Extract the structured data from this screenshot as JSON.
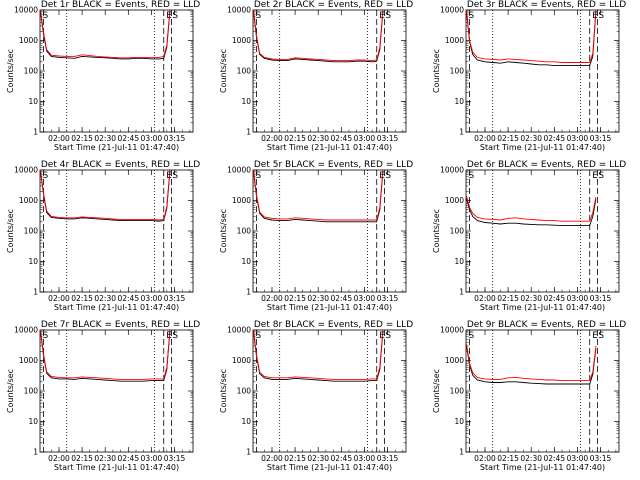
{
  "figure": {
    "ylabel": "Counts/sec",
    "xlabel": "Start Time (21-Jul-11 01:47:40)",
    "x_ticks": [
      "02:00",
      "02:15",
      "02:30",
      "02:45",
      "03:00",
      "03:15"
    ],
    "y_ticks": [
      "1",
      "10",
      "100",
      "1000",
      "10000"
    ],
    "colors": {
      "events": "#000000",
      "lld": "#ff0000"
    }
  },
  "chart_data": [
    {
      "type": "line",
      "title": "Det 1r BLACK = Events, RED = LLD",
      "xlabel": "Start Time (21-Jul-11 01:47:40)",
      "ylabel": "Counts/sec",
      "yscale": "log",
      "ylim": [
        1,
        10000
      ],
      "xlim": [
        "01:47:40",
        "03:27"
      ],
      "x_ticks": [
        "02:00",
        "02:15",
        "02:30",
        "02:45",
        "03:00",
        "03:15"
      ],
      "y_ticks": [
        "1",
        "10",
        "100",
        "1000",
        "10000"
      ],
      "markers": [
        "S",
        "E",
        "S"
      ],
      "x": [
        "01:48",
        "01:50",
        "01:52",
        "01:55",
        "02:00",
        "02:05",
        "02:10",
        "02:15",
        "02:20",
        "02:25",
        "02:30",
        "02:35",
        "02:40",
        "02:45",
        "02:50",
        "02:55",
        "03:00",
        "03:05",
        "03:08",
        "03:10",
        "03:12"
      ],
      "series": [
        {
          "name": "Events",
          "color": "#000000",
          "values": [
            9000,
            1500,
            450,
            300,
            280,
            270,
            260,
            300,
            290,
            280,
            270,
            260,
            250,
            250,
            260,
            260,
            250,
            250,
            260,
            600,
            9000
          ]
        },
        {
          "name": "LLD",
          "color": "#ff0000",
          "values": [
            10000,
            1800,
            500,
            330,
            310,
            300,
            300,
            340,
            320,
            300,
            290,
            280,
            270,
            270,
            280,
            280,
            280,
            280,
            300,
            700,
            10000
          ]
        }
      ]
    },
    {
      "type": "line",
      "title": "Det 2r BLACK = Events, RED = LLD",
      "xlabel": "Start Time (21-Jul-11 01:47:40)",
      "ylabel": "Counts/sec",
      "yscale": "log",
      "ylim": [
        1,
        10000
      ],
      "xlim": [
        "01:47:40",
        "03:27"
      ],
      "x_ticks": [
        "02:00",
        "02:15",
        "02:30",
        "02:45",
        "03:00",
        "03:15"
      ],
      "y_ticks": [
        "1",
        "10",
        "100",
        "1000",
        "10000"
      ],
      "markers": [
        "S",
        "E",
        "S"
      ],
      "x": [
        "01:48",
        "01:50",
        "01:52",
        "01:55",
        "02:00",
        "02:05",
        "02:10",
        "02:15",
        "02:20",
        "02:25",
        "02:30",
        "02:35",
        "02:40",
        "02:45",
        "02:50",
        "02:55",
        "03:00",
        "03:05",
        "03:08",
        "03:10",
        "03:12"
      ],
      "series": [
        {
          "name": "Events",
          "color": "#000000",
          "values": [
            9000,
            1200,
            350,
            260,
            230,
            220,
            220,
            250,
            240,
            230,
            220,
            210,
            200,
            200,
            200,
            210,
            210,
            200,
            210,
            500,
            9000
          ]
        },
        {
          "name": "LLD",
          "color": "#ff0000",
          "values": [
            10000,
            1400,
            380,
            280,
            250,
            240,
            240,
            270,
            260,
            250,
            240,
            230,
            220,
            220,
            220,
            230,
            230,
            220,
            230,
            600,
            10000
          ]
        }
      ]
    },
    {
      "type": "line",
      "title": "Det 3r BLACK = Events, RED = LLD",
      "xlabel": "Start Time (21-Jul-11 01:47:40)",
      "ylabel": "Counts/sec",
      "yscale": "log",
      "ylim": [
        1,
        10000
      ],
      "xlim": [
        "01:47:40",
        "03:27"
      ],
      "x_ticks": [
        "02:00",
        "02:15",
        "02:30",
        "02:45",
        "03:00",
        "03:15"
      ],
      "y_ticks": [
        "1",
        "10",
        "100",
        "1000",
        "10000"
      ],
      "markers": [
        "S",
        "E",
        "S"
      ],
      "x": [
        "01:48",
        "01:50",
        "01:52",
        "01:55",
        "02:00",
        "02:05",
        "02:10",
        "02:15",
        "02:20",
        "02:25",
        "02:30",
        "02:35",
        "02:40",
        "02:45",
        "02:50",
        "02:55",
        "03:00",
        "03:05",
        "03:08",
        "03:10",
        "03:12"
      ],
      "series": [
        {
          "name": "Events",
          "color": "#000000",
          "values": [
            9000,
            900,
            350,
            230,
            200,
            190,
            180,
            200,
            190,
            180,
            170,
            160,
            160,
            150,
            150,
            150,
            150,
            150,
            150,
            300,
            9000
          ]
        },
        {
          "name": "LLD",
          "color": "#ff0000",
          "values": [
            10000,
            1000,
            420,
            280,
            250,
            240,
            230,
            250,
            240,
            230,
            220,
            210,
            200,
            200,
            190,
            190,
            190,
            190,
            190,
            380,
            10000
          ]
        }
      ]
    },
    {
      "type": "line",
      "title": "Det 4r BLACK = Events, RED = LLD",
      "xlabel": "Start Time (21-Jul-11 01:47:40)",
      "ylabel": "Counts/sec",
      "yscale": "log",
      "ylim": [
        1,
        10000
      ],
      "xlim": [
        "01:47:40",
        "03:27"
      ],
      "x_ticks": [
        "02:00",
        "02:15",
        "02:30",
        "02:45",
        "03:00",
        "03:15"
      ],
      "y_ticks": [
        "1",
        "10",
        "100",
        "1000",
        "10000"
      ],
      "markers": [
        "S",
        "E",
        "S"
      ],
      "x": [
        "01:48",
        "01:50",
        "01:52",
        "01:55",
        "02:00",
        "02:05",
        "02:10",
        "02:15",
        "02:20",
        "02:25",
        "02:30",
        "02:35",
        "02:40",
        "02:45",
        "02:50",
        "02:55",
        "03:00",
        "03:05",
        "03:08",
        "03:10",
        "03:12"
      ],
      "series": [
        {
          "name": "Events",
          "color": "#000000",
          "values": [
            9000,
            1500,
            400,
            280,
            260,
            250,
            250,
            270,
            260,
            250,
            240,
            230,
            220,
            220,
            220,
            220,
            220,
            210,
            220,
            550,
            9000
          ]
        },
        {
          "name": "LLD",
          "color": "#ff0000",
          "values": [
            10000,
            1700,
            450,
            300,
            280,
            270,
            270,
            290,
            280,
            270,
            260,
            250,
            240,
            240,
            240,
            240,
            240,
            230,
            240,
            650,
            10000
          ]
        }
      ]
    },
    {
      "type": "line",
      "title": "Det 5r BLACK = Events, RED = LLD",
      "xlabel": "Start Time (21-Jul-11 01:47:40)",
      "ylabel": "Counts/sec",
      "yscale": "log",
      "ylim": [
        1,
        10000
      ],
      "xlim": [
        "01:47:40",
        "03:27"
      ],
      "x_ticks": [
        "02:00",
        "02:15",
        "02:30",
        "02:45",
        "03:00",
        "03:15"
      ],
      "y_ticks": [
        "1",
        "10",
        "100",
        "1000",
        "10000"
      ],
      "markers": [
        "S",
        "E",
        "S"
      ],
      "x": [
        "01:48",
        "01:50",
        "01:52",
        "01:55",
        "02:00",
        "02:05",
        "02:10",
        "02:15",
        "02:20",
        "02:25",
        "02:30",
        "02:35",
        "02:40",
        "02:45",
        "02:50",
        "02:55",
        "03:00",
        "03:05",
        "03:08",
        "03:10",
        "03:12"
      ],
      "series": [
        {
          "name": "Events",
          "color": "#000000",
          "values": [
            9000,
            1300,
            380,
            260,
            230,
            220,
            220,
            240,
            230,
            220,
            210,
            200,
            200,
            200,
            200,
            200,
            200,
            200,
            200,
            500,
            9000
          ]
        },
        {
          "name": "LLD",
          "color": "#ff0000",
          "values": [
            10000,
            1500,
            420,
            290,
            260,
            250,
            250,
            270,
            260,
            250,
            240,
            230,
            230,
            230,
            230,
            230,
            230,
            230,
            230,
            600,
            10000
          ]
        }
      ]
    },
    {
      "type": "line",
      "title": "Det 6r BLACK = Events, RED = LLD",
      "xlabel": "Start Time (21-Jul-11 01:47:40)",
      "ylabel": "Counts/sec",
      "yscale": "log",
      "ylim": [
        1,
        10000
      ],
      "xlim": [
        "01:47:40",
        "03:27"
      ],
      "x_ticks": [
        "02:00",
        "02:15",
        "02:30",
        "02:45",
        "03:00",
        "03:15"
      ],
      "y_ticks": [
        "1",
        "10",
        "100",
        "1000",
        "10000"
      ],
      "markers": [
        "S",
        "E",
        "S"
      ],
      "x": [
        "01:48",
        "01:50",
        "01:52",
        "01:55",
        "02:00",
        "02:05",
        "02:10",
        "02:15",
        "02:20",
        "02:25",
        "02:30",
        "02:35",
        "02:40",
        "02:45",
        "02:50",
        "02:55",
        "03:00",
        "03:05",
        "03:08",
        "03:10",
        "03:12"
      ],
      "series": [
        {
          "name": "Events",
          "color": "#000000",
          "values": [
            1200,
            500,
            300,
            220,
            190,
            180,
            170,
            180,
            180,
            170,
            165,
            160,
            160,
            155,
            150,
            150,
            150,
            150,
            150,
            300,
            1100
          ]
        },
        {
          "name": "LLD",
          "color": "#ff0000",
          "values": [
            1400,
            600,
            380,
            280,
            250,
            240,
            230,
            260,
            270,
            250,
            240,
            230,
            220,
            220,
            210,
            210,
            210,
            210,
            210,
            400,
            1300
          ]
        }
      ]
    },
    {
      "type": "line",
      "title": "Det 7r BLACK = Events, RED = LLD",
      "xlabel": "Start Time (21-Jul-11 01:47:40)",
      "ylabel": "Counts/sec",
      "yscale": "log",
      "ylim": [
        1,
        10000
      ],
      "xlim": [
        "01:47:40",
        "03:27"
      ],
      "x_ticks": [
        "02:00",
        "02:15",
        "02:30",
        "02:45",
        "03:00",
        "03:15"
      ],
      "y_ticks": [
        "1",
        "10",
        "100",
        "1000",
        "10000"
      ],
      "markers": [
        "S",
        "E",
        "S"
      ],
      "x": [
        "01:48",
        "01:50",
        "01:52",
        "01:55",
        "02:00",
        "02:05",
        "02:10",
        "02:15",
        "02:20",
        "02:25",
        "02:30",
        "02:35",
        "02:40",
        "02:45",
        "02:50",
        "02:55",
        "03:00",
        "03:05",
        "03:08",
        "03:10",
        "03:12"
      ],
      "series": [
        {
          "name": "Events",
          "color": "#000000",
          "values": [
            9000,
            1400,
            380,
            270,
            250,
            250,
            240,
            260,
            250,
            240,
            230,
            220,
            210,
            210,
            210,
            210,
            220,
            220,
            220,
            500,
            9000
          ]
        },
        {
          "name": "LLD",
          "color": "#ff0000",
          "values": [
            10000,
            1600,
            420,
            300,
            280,
            270,
            270,
            290,
            280,
            270,
            260,
            250,
            240,
            240,
            240,
            240,
            250,
            250,
            250,
            600,
            10000
          ]
        }
      ]
    },
    {
      "type": "line",
      "title": "Det 8r BLACK = Events, RED = LLD",
      "xlabel": "Start Time (21-Jul-11 01:47:40)",
      "ylabel": "Counts/sec",
      "yscale": "log",
      "ylim": [
        1,
        10000
      ],
      "xlim": [
        "01:47:40",
        "03:27"
      ],
      "x_ticks": [
        "02:00",
        "02:15",
        "02:30",
        "02:45",
        "03:00",
        "03:15"
      ],
      "y_ticks": [
        "1",
        "10",
        "100",
        "1000",
        "10000"
      ],
      "markers": [
        "S",
        "E",
        "S"
      ],
      "x": [
        "01:48",
        "01:50",
        "01:52",
        "01:55",
        "02:00",
        "02:05",
        "02:10",
        "02:15",
        "02:20",
        "02:25",
        "02:30",
        "02:35",
        "02:40",
        "02:45",
        "02:50",
        "02:55",
        "03:00",
        "03:05",
        "03:08",
        "03:10",
        "03:12"
      ],
      "series": [
        {
          "name": "Events",
          "color": "#000000",
          "values": [
            9000,
            1300,
            370,
            270,
            240,
            240,
            240,
            260,
            250,
            240,
            230,
            220,
            210,
            210,
            210,
            210,
            210,
            220,
            220,
            500,
            9000
          ]
        },
        {
          "name": "LLD",
          "color": "#ff0000",
          "values": [
            10000,
            1500,
            410,
            300,
            270,
            270,
            270,
            290,
            280,
            270,
            260,
            250,
            240,
            240,
            240,
            240,
            240,
            250,
            250,
            600,
            10000
          ]
        }
      ]
    },
    {
      "type": "line",
      "title": "Det 9r BLACK = Events, RED = LLD",
      "xlabel": "Start Time (21-Jul-11 01:47:40)",
      "ylabel": "Counts/sec",
      "yscale": "log",
      "ylim": [
        1,
        10000
      ],
      "xlim": [
        "01:47:40",
        "03:27"
      ],
      "x_ticks": [
        "02:00",
        "02:15",
        "02:30",
        "02:45",
        "03:00",
        "03:15"
      ],
      "y_ticks": [
        "1",
        "10",
        "100",
        "1000",
        "10000"
      ],
      "markers": [
        "S",
        "E",
        "S"
      ],
      "x": [
        "01:48",
        "01:50",
        "01:52",
        "01:55",
        "02:00",
        "02:05",
        "02:10",
        "02:15",
        "02:20",
        "02:25",
        "02:30",
        "02:35",
        "02:40",
        "02:45",
        "02:50",
        "02:55",
        "03:00",
        "03:05",
        "03:08",
        "03:10",
        "03:12"
      ],
      "series": [
        {
          "name": "Events",
          "color": "#000000",
          "values": [
            3000,
            700,
            330,
            230,
            200,
            190,
            190,
            200,
            200,
            190,
            180,
            175,
            170,
            170,
            170,
            170,
            170,
            170,
            170,
            350,
            2500
          ]
        },
        {
          "name": "LLD",
          "color": "#ff0000",
          "values": [
            3500,
            800,
            400,
            280,
            250,
            240,
            240,
            270,
            280,
            260,
            250,
            240,
            230,
            230,
            220,
            220,
            220,
            220,
            220,
            420,
            3000
          ]
        }
      ]
    }
  ]
}
